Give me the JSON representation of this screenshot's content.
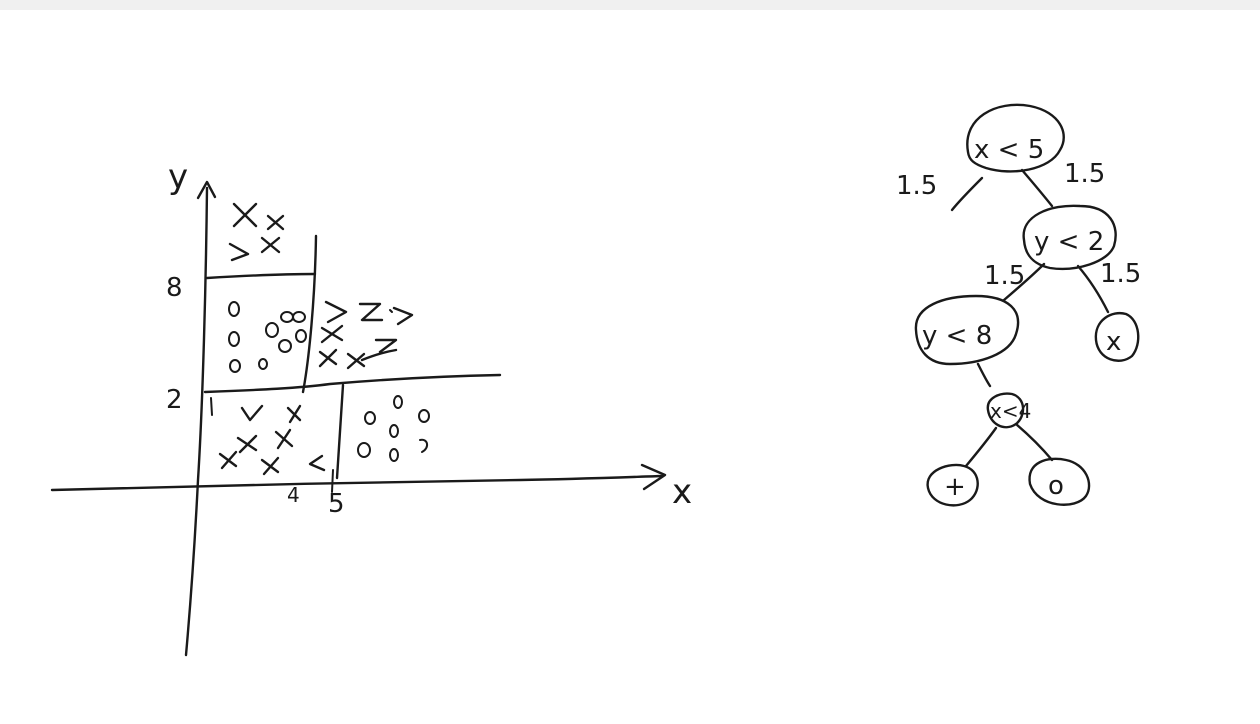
{
  "scatter": {
    "y_axis_label": "y",
    "x_axis_label": "x",
    "y_tick_8": "8",
    "y_tick_2": "2",
    "x_tick_4": "4",
    "x_tick_5": "5",
    "marker_x": "x",
    "marker_o": "o"
  },
  "tree": {
    "root_label": "x < 5",
    "root_left_edge": "1.5",
    "root_right_edge": "1.5",
    "node_y2_label": "y < 2",
    "node_y2_left_edge": "1.5",
    "node_y2_right_edge": "1.5",
    "node_y8_label": "y < 8",
    "node_x4_label": "x<4",
    "leaf_right_label": "x",
    "leaf_bottom_left_label": "+",
    "leaf_bottom_right_label": "o"
  },
  "colors": {
    "ink": "#1a1a1a",
    "background": "#ffffff",
    "top_strip": "#f0f0f0"
  }
}
